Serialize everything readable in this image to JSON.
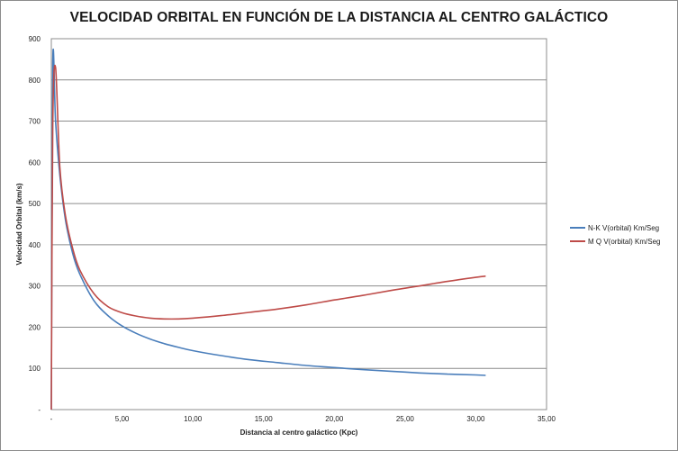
{
  "chart_data": {
    "type": "line",
    "title": "VELOCIDAD ORBITAL  EN FUNCIÓN DE LA DISTANCIA AL CENTRO GALÁCTICO",
    "xlabel": "Distancia al centro galáctico (Kpc)",
    "ylabel": "Velocidad Orbital (km/s)",
    "xlim": [
      0,
      35
    ],
    "ylim": [
      0,
      900
    ],
    "x_ticks": [
      "-",
      "5,00",
      "10,00",
      "15,00",
      "20,00",
      "25,00",
      "30,00",
      "35,00"
    ],
    "y_ticks": [
      "-",
      "100",
      "200",
      "300",
      "400",
      "500",
      "600",
      "700",
      "800",
      "900"
    ],
    "grid": "horizontal",
    "legend_position": "right",
    "series": [
      {
        "name": "N-K V(orbital) Km/Seg",
        "color": "#4a7ebb",
        "x": [
          0,
          0.1,
          0.3,
          0.6,
          1.0,
          1.5,
          2.0,
          3.0,
          4.0,
          5.0,
          6.0,
          7.0,
          8.0,
          9.0,
          10.0,
          12.0,
          14.0,
          16.0,
          18.0,
          20.0,
          22.0,
          24.0,
          26.0,
          28.0,
          30.0,
          30.7
        ],
        "y": [
          0,
          840,
          700,
          570,
          460,
          380,
          330,
          265,
          228,
          203,
          185,
          171,
          160,
          151,
          143,
          131,
          121,
          114,
          107,
          102,
          97,
          93,
          89,
          86,
          84,
          83
        ]
      },
      {
        "name": "M Q V(orbital) Km/Seg",
        "color": "#be4b48",
        "x": [
          0,
          0.1,
          0.3,
          0.6,
          1.0,
          1.5,
          2.0,
          3.0,
          4.0,
          5.0,
          6.0,
          7.0,
          8.0,
          9.0,
          10.0,
          12.0,
          14.0,
          16.0,
          18.0,
          20.0,
          22.0,
          24.0,
          26.0,
          28.0,
          30.0,
          30.7
        ],
        "y": [
          0,
          690,
          830,
          590,
          470,
          392,
          340,
          282,
          250,
          235,
          227,
          222,
          220,
          220,
          222,
          228,
          236,
          244,
          254,
          266,
          277,
          289,
          300,
          311,
          321,
          324
        ]
      }
    ]
  }
}
